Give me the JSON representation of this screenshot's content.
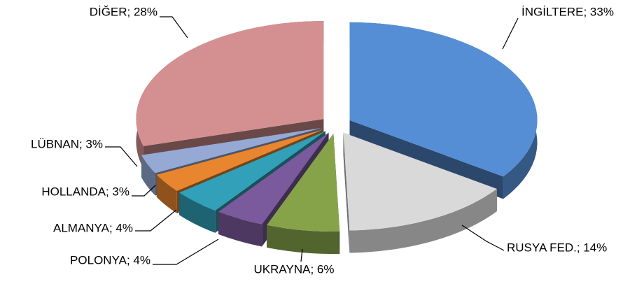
{
  "chart_data": {
    "type": "pie3d",
    "values": [
      33,
      14,
      6,
      4,
      4,
      3,
      3,
      28
    ],
    "value_labels": [
      "İNGİLTERE; 33%",
      "RUSYA FED.; 14%",
      "UKRAYNA; 6%",
      "POLONYA; 4%",
      "ALMANYA; 4%",
      "HOLLANDA; 3%",
      "LÜBNAN; 3%",
      "DİĞER; 28%"
    ],
    "colors": [
      "#558ed5",
      "#d9d9d9",
      "#86a34a",
      "#7a5a9c",
      "#31a0b8",
      "#e8852f",
      "#95a9d4",
      "#d49090"
    ]
  }
}
